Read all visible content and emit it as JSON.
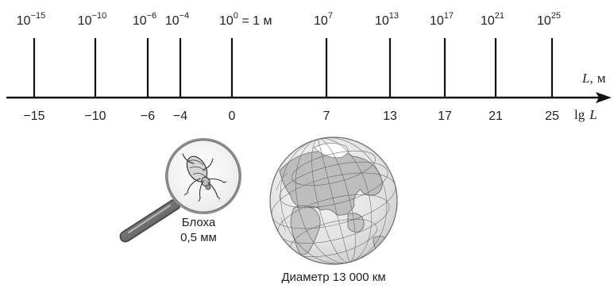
{
  "axis": {
    "top_label_var": "L,",
    "top_label_unit": "м",
    "bottom_label_fn": "lg",
    "bottom_label_var": "L",
    "ticks": [
      {
        "value": -15,
        "tick_label": "−15",
        "power_base": "10",
        "power_exp": "−15",
        "suffix": ""
      },
      {
        "value": -10,
        "tick_label": "−10",
        "power_base": "10",
        "power_exp": "−10",
        "suffix": ""
      },
      {
        "value": -6,
        "tick_label": "−6",
        "power_base": "10",
        "power_exp": "−6",
        "suffix": ""
      },
      {
        "value": -4,
        "tick_label": "−4",
        "power_base": "10",
        "power_exp": "−4",
        "suffix": ""
      },
      {
        "value": 0,
        "tick_label": "0",
        "power_base": "10",
        "power_exp": "0",
        "suffix": " = 1 м"
      },
      {
        "value": 7,
        "tick_label": "7",
        "power_base": "10",
        "power_exp": "7",
        "suffix": ""
      },
      {
        "value": 13,
        "tick_label": "13",
        "power_base": "10",
        "power_exp": "13",
        "suffix": ""
      },
      {
        "value": 17,
        "tick_label": "17",
        "power_base": "10",
        "power_exp": "17",
        "suffix": ""
      },
      {
        "value": 21,
        "tick_label": "21",
        "power_base": "10",
        "power_exp": "21",
        "suffix": ""
      },
      {
        "value": 25,
        "tick_label": "25",
        "power_base": "10",
        "power_exp": "25",
        "suffix": ""
      }
    ]
  },
  "flea": {
    "name": "Блоха",
    "size": "0,5 мм"
  },
  "earth": {
    "caption": "Диаметр 13 000 км"
  }
}
